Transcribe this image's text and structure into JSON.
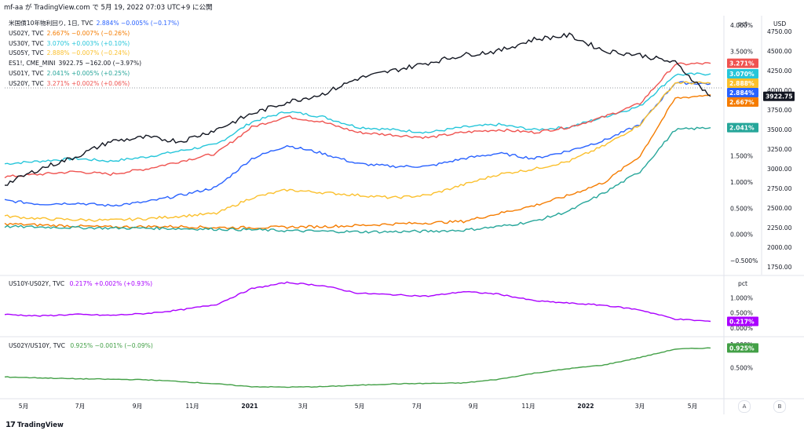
{
  "header": {
    "text": "mf-aa が TradingView.com で 5月 19, 2022 07:03 UTC+9 に公開"
  },
  "footer": {
    "brand": "TradingView",
    "logo": "17"
  },
  "legend_main": [
    {
      "label": "米国債10年物利回り, 1日, TVC",
      "values": "2.884%  −0.005% (−0.17%)",
      "color": "#2962ff"
    },
    {
      "label": "US02Y, TVC",
      "values": "2.667%  −0.007% (−0.26%)",
      "color": "#f57c00"
    },
    {
      "label": "US30Y, TVC",
      "values": "3.070%  +0.003% (+0.10%)",
      "color": "#26c6da"
    },
    {
      "label": "US05Y, TVC",
      "values": "2.888%  −0.007% (−0.24%)",
      "color": "#fbc02d"
    },
    {
      "label": "ES1!, CME_MINI",
      "values": "3922.75  −162.00 (−3.97%)",
      "color": "#131722"
    },
    {
      "label": "US01Y, TVC",
      "values": "2.041%  +0.005% (+0.25%)",
      "color": "#26a69a"
    },
    {
      "label": "US20Y, TVC",
      "values": "3.271%  +0.002% (+0.06%)",
      "color": "#ef5350"
    }
  ],
  "legend_spread": {
    "label": "US10Y-US02Y, TVC",
    "values": "0.217%  +0.002% (+0.93%)",
    "color": "#aa00ff"
  },
  "legend_ratio": {
    "label": "US02Y/US10Y, TVC",
    "values": "0.925%  −0.001% (−0.09%)",
    "color": "#43a047"
  },
  "axis_buttons": {
    "a": "A",
    "b": "B"
  },
  "colors": {
    "us10y": "#2962ff",
    "us02y": "#f57c00",
    "us30y": "#26c6da",
    "us05y": "#fbc02d",
    "es": "#131722",
    "us01y": "#26a69a",
    "us20y": "#ef5350",
    "spread": "#aa00ff",
    "ratio": "#43a047"
  },
  "chart_data": [
    {
      "type": "line",
      "x_tick_labels": [
        "5月",
        "7月",
        "9月",
        "11月",
        "2021",
        "3月",
        "5月",
        "7月",
        "9月",
        "11月",
        "2022",
        "3月",
        "5月"
      ],
      "x_range": [
        "2020-04",
        "2022-05"
      ],
      "pct_axis": {
        "unit": "pct",
        "ticks": [
          "4.000%",
          "3.500%",
          "3.000%",
          "2.500%",
          "1.500%",
          "1.000%",
          "0.500%",
          "0.000%",
          "−0.500%"
        ],
        "ylim": [
          -0.5,
          4.0
        ]
      },
      "usd_axis": {
        "unit": "USD",
        "ticks": [
          "4750.00",
          "4500.00",
          "4250.00",
          "4000.00",
          "3750.00",
          "3500.00",
          "3250.00",
          "3000.00",
          "2750.00",
          "2500.00",
          "2250.00",
          "2000.00",
          "1750.00"
        ],
        "ylim": [
          1750,
          4750
        ]
      },
      "series": [
        {
          "name": "US30Y",
          "color": "#26c6da",
          "axis": "pct",
          "last_label": "3.070%",
          "x": [
            0,
            0.05,
            0.1,
            0.15,
            0.2,
            0.25,
            0.3,
            0.35,
            0.4,
            0.45,
            0.5,
            0.55,
            0.6,
            0.65,
            0.7,
            0.75,
            0.8,
            0.85,
            0.9,
            0.95,
            1.0
          ],
          "values": [
            1.35,
            1.4,
            1.45,
            1.4,
            1.48,
            1.6,
            1.72,
            2.15,
            2.35,
            2.25,
            2.05,
            2.0,
            1.95,
            2.05,
            2.1,
            2.0,
            2.05,
            2.25,
            2.45,
            3.05,
            3.07
          ]
        },
        {
          "name": "US20Y",
          "color": "#ef5350",
          "axis": "pct",
          "last_label": "3.271%",
          "x": [
            0,
            0.05,
            0.1,
            0.15,
            0.2,
            0.25,
            0.3,
            0.35,
            0.4,
            0.45,
            0.5,
            0.55,
            0.6,
            0.65,
            0.7,
            0.75,
            0.8,
            0.85,
            0.9,
            0.95,
            1.0
          ],
          "values": [
            1.1,
            1.15,
            1.2,
            1.15,
            1.25,
            1.4,
            1.55,
            2.05,
            2.25,
            2.15,
            1.95,
            1.9,
            1.85,
            1.95,
            2.0,
            1.95,
            2.05,
            2.25,
            2.5,
            3.25,
            3.27
          ]
        },
        {
          "name": "US10Y",
          "color": "#2962ff",
          "axis": "pct",
          "last_label": "2.884%",
          "x": [
            0,
            0.05,
            0.1,
            0.15,
            0.2,
            0.25,
            0.3,
            0.35,
            0.4,
            0.45,
            0.5,
            0.55,
            0.6,
            0.65,
            0.7,
            0.75,
            0.8,
            0.85,
            0.9,
            0.95,
            1.0
          ],
          "values": [
            0.65,
            0.58,
            0.6,
            0.55,
            0.62,
            0.75,
            0.9,
            1.45,
            1.7,
            1.55,
            1.35,
            1.3,
            1.3,
            1.45,
            1.55,
            1.45,
            1.6,
            1.8,
            2.1,
            2.9,
            2.88
          ]
        },
        {
          "name": "US05Y",
          "color": "#fbc02d",
          "axis": "pct",
          "last_label": "2.888%",
          "x": [
            0,
            0.05,
            0.1,
            0.15,
            0.2,
            0.25,
            0.3,
            0.35,
            0.4,
            0.45,
            0.5,
            0.55,
            0.6,
            0.65,
            0.7,
            0.75,
            0.8,
            0.85,
            0.9,
            0.95,
            1.0
          ],
          "values": [
            0.35,
            0.3,
            0.28,
            0.27,
            0.3,
            0.35,
            0.4,
            0.7,
            0.85,
            0.8,
            0.75,
            0.7,
            0.75,
            0.95,
            1.15,
            1.25,
            1.4,
            1.7,
            2.1,
            2.9,
            2.89
          ]
        },
        {
          "name": "US02Y",
          "color": "#f57c00",
          "axis": "pct",
          "last_label": "2.667%",
          "x": [
            0,
            0.05,
            0.1,
            0.15,
            0.2,
            0.25,
            0.3,
            0.35,
            0.4,
            0.45,
            0.5,
            0.55,
            0.6,
            0.65,
            0.7,
            0.75,
            0.8,
            0.85,
            0.9,
            0.95,
            1.0
          ],
          "values": [
            0.2,
            0.18,
            0.16,
            0.14,
            0.15,
            0.15,
            0.13,
            0.13,
            0.14,
            0.15,
            0.17,
            0.2,
            0.22,
            0.25,
            0.4,
            0.55,
            0.75,
            1.0,
            1.5,
            2.6,
            2.67
          ]
        },
        {
          "name": "US01Y",
          "color": "#26a69a",
          "axis": "pct",
          "last_label": "2.041%",
          "x": [
            0,
            0.05,
            0.1,
            0.15,
            0.2,
            0.25,
            0.3,
            0.35,
            0.4,
            0.45,
            0.5,
            0.55,
            0.6,
            0.65,
            0.7,
            0.75,
            0.8,
            0.85,
            0.9,
            0.95,
            1.0
          ],
          "values": [
            0.15,
            0.14,
            0.13,
            0.12,
            0.12,
            0.11,
            0.1,
            0.09,
            0.07,
            0.06,
            0.05,
            0.05,
            0.06,
            0.08,
            0.15,
            0.25,
            0.45,
            0.8,
            1.2,
            2.0,
            2.04
          ]
        },
        {
          "name": "ES1!",
          "color": "#131722",
          "axis": "usd",
          "last_label": "3922.75",
          "x": [
            0,
            0.05,
            0.1,
            0.15,
            0.2,
            0.25,
            0.3,
            0.35,
            0.4,
            0.45,
            0.5,
            0.55,
            0.6,
            0.65,
            0.7,
            0.75,
            0.8,
            0.85,
            0.9,
            0.95,
            1.0
          ],
          "values": [
            2800,
            3000,
            3150,
            3350,
            3400,
            3350,
            3500,
            3700,
            3850,
            3950,
            4150,
            4250,
            4350,
            4450,
            4500,
            4650,
            4700,
            4500,
            4450,
            4350,
            3922.75
          ]
        }
      ]
    },
    {
      "type": "line",
      "unit": "pct",
      "ticks": [
        "1.000%",
        "0.500%",
        "0.000%"
      ],
      "ylim": [
        -0.05,
        1.5
      ],
      "series": [
        {
          "name": "US10Y-US02Y",
          "color": "#aa00ff",
          "last_label": "0.217%",
          "x": [
            0,
            0.05,
            0.1,
            0.15,
            0.2,
            0.25,
            0.3,
            0.35,
            0.4,
            0.45,
            0.5,
            0.55,
            0.6,
            0.65,
            0.7,
            0.75,
            0.8,
            0.85,
            0.9,
            0.95,
            1.0
          ],
          "values": [
            0.45,
            0.4,
            0.45,
            0.42,
            0.48,
            0.6,
            0.78,
            1.3,
            1.5,
            1.4,
            1.15,
            1.1,
            1.05,
            1.2,
            1.12,
            0.9,
            0.82,
            0.75,
            0.6,
            0.3,
            0.22
          ]
        }
      ]
    },
    {
      "type": "line",
      "unit": "pct",
      "ticks": [
        "1.000%",
        "0.500%"
      ],
      "ylim": [
        0.0,
        1.05
      ],
      "series": [
        {
          "name": "US02Y/US10Y",
          "color": "#43a047",
          "last_label": "0.925%",
          "x": [
            0,
            0.05,
            0.1,
            0.15,
            0.2,
            0.25,
            0.3,
            0.35,
            0.4,
            0.45,
            0.5,
            0.55,
            0.6,
            0.65,
            0.7,
            0.75,
            0.8,
            0.85,
            0.9,
            0.95,
            1.0
          ],
          "values": [
            0.3,
            0.28,
            0.26,
            0.25,
            0.24,
            0.2,
            0.15,
            0.09,
            0.08,
            0.09,
            0.12,
            0.15,
            0.16,
            0.17,
            0.25,
            0.38,
            0.48,
            0.56,
            0.72,
            0.9,
            0.925
          ]
        }
      ]
    }
  ]
}
